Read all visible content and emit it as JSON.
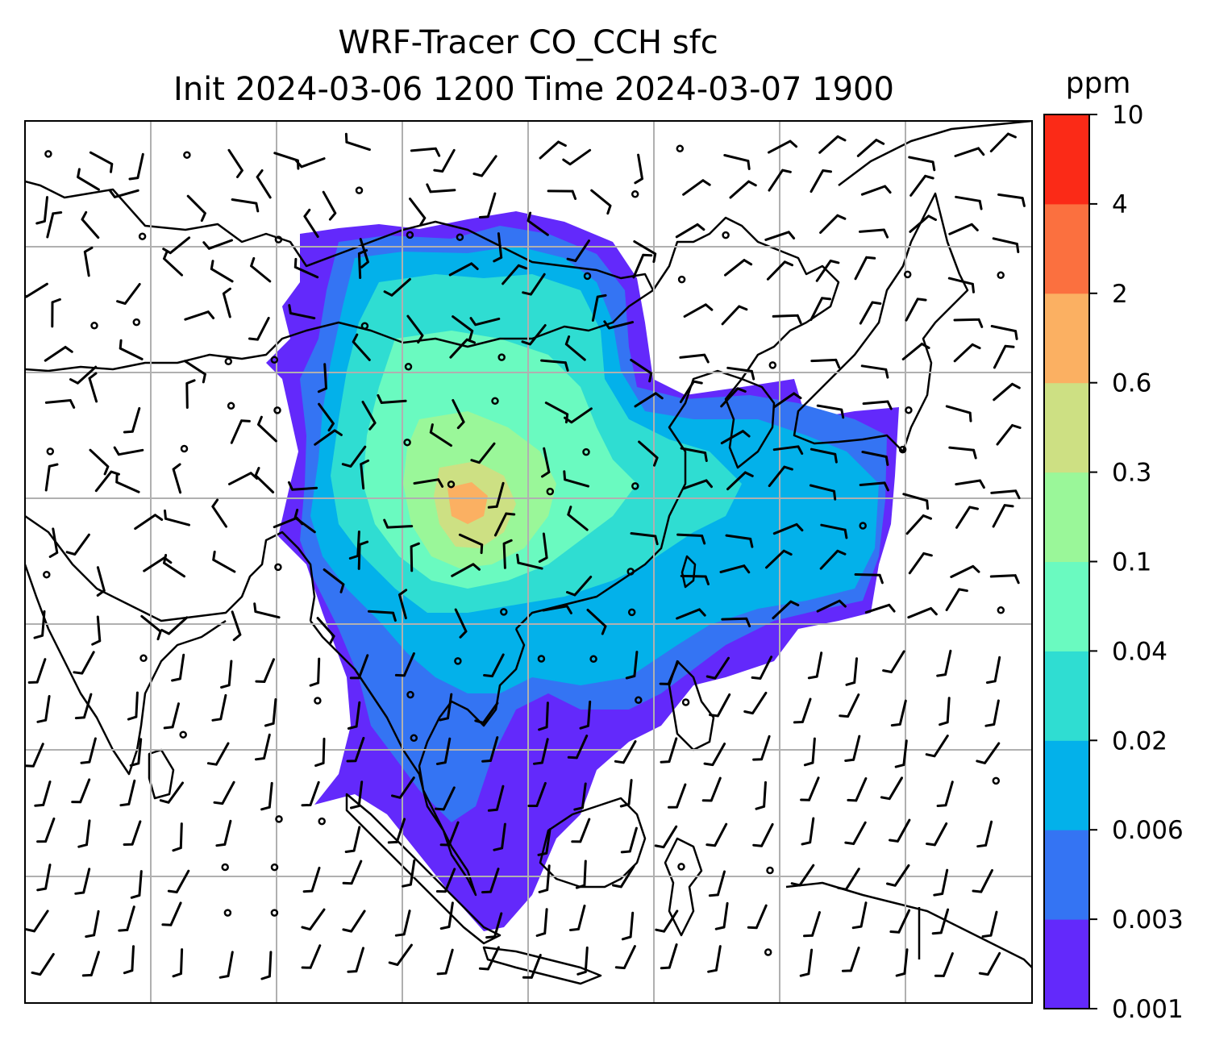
{
  "title": {
    "line1": "WRF-Tracer CO_CCH sfc",
    "line2": "Init 2024-03-06 1200 Time 2024-03-07 1900"
  },
  "colorbar": {
    "unit": "ppm",
    "levels": [
      "0.001",
      "0.003",
      "0.006",
      "0.02",
      "0.04",
      "0.1",
      "0.3",
      "0.6",
      "2",
      "4",
      "10"
    ],
    "colors": [
      "#6329fb",
      "#3474f3",
      "#03b1ea",
      "#2fddd2",
      "#6afac0",
      "#9af799",
      "#cde083",
      "#fbb062",
      "#fb703f",
      "#fb2a17"
    ]
  },
  "map": {
    "grid": true,
    "coastline_color": "#000000",
    "wind_barbs": true,
    "field": "CO_CCH tracer concentration at surface"
  }
}
